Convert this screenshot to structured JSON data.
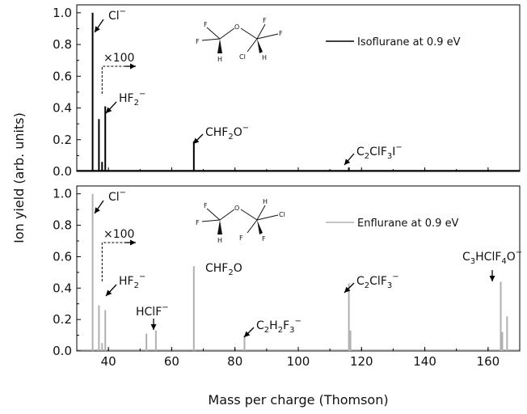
{
  "colors": {
    "isoflurane": "#000000",
    "enflurane": "#b0b0b0",
    "axis": "#000000"
  },
  "chart_data": [
    {
      "type": "line",
      "panel": "top",
      "legend": {
        "label": "Isoflurane at 0.9 eV",
        "placement": "top-right"
      },
      "xlim": [
        30,
        170
      ],
      "ylim": [
        0,
        1.05
      ],
      "ylabel": "Ion yield (arb. units)",
      "xlabel": "Mass per charge (Thomson)",
      "x_ticks": [
        "40",
        "60",
        "80",
        "100",
        "120",
        "140",
        "160"
      ],
      "y_ticks": [
        "0.0",
        "0.2",
        "0.4",
        "0.6",
        "0.8",
        "1.0"
      ],
      "peaks": [
        {
          "x": 35,
          "y": 1.0
        },
        {
          "x": 37,
          "y": 0.33
        },
        {
          "x": 38,
          "y": 0.06
        },
        {
          "x": 39,
          "y": 0.41
        },
        {
          "x": 67,
          "y": 0.19
        },
        {
          "x": 116,
          "y": 0.025
        }
      ],
      "annotations": [
        {
          "key": "cl",
          "main": "Cl",
          "sup": "−"
        },
        {
          "key": "hf2",
          "main": "HF",
          "sub": "2",
          "sup": "−"
        },
        {
          "key": "chf2o",
          "main": "CHF",
          "sub": "2",
          "main2": "O",
          "sup": "−"
        },
        {
          "key": "c2clf3i",
          "main": "C",
          "sub": "2",
          "main2": "ClF",
          "sub2": "3",
          "main3": "I",
          "sup": "−"
        },
        {
          "key": "x100",
          "text": "×100"
        }
      ],
      "molecule_atoms": [
        "F",
        "F",
        "H",
        "O",
        "F",
        "F",
        "Cl",
        "H"
      ]
    },
    {
      "type": "line",
      "panel": "bottom",
      "legend": {
        "label": "Enflurane at 0.9 eV",
        "placement": "top-right"
      },
      "xlim": [
        30,
        170
      ],
      "ylim": [
        0,
        1.05
      ],
      "ylabel": "Ion yield (arb. units)",
      "xlabel": "Mass per charge (Thomson)",
      "x_ticks": [
        "40",
        "60",
        "80",
        "100",
        "120",
        "140",
        "160"
      ],
      "y_ticks": [
        "0.0",
        "0.2",
        "0.4",
        "0.6",
        "0.8",
        "1.0"
      ],
      "peaks": [
        {
          "x": 35,
          "y": 1.0
        },
        {
          "x": 37,
          "y": 0.29
        },
        {
          "x": 38,
          "y": 0.05
        },
        {
          "x": 39,
          "y": 0.26
        },
        {
          "x": 52,
          "y": 0.11
        },
        {
          "x": 55,
          "y": 0.13
        },
        {
          "x": 67,
          "y": 0.54
        },
        {
          "x": 83,
          "y": 0.1
        },
        {
          "x": 116,
          "y": 0.43
        },
        {
          "x": 116.5,
          "y": 0.13
        },
        {
          "x": 164,
          "y": 0.44
        },
        {
          "x": 164.5,
          "y": 0.12
        },
        {
          "x": 166,
          "y": 0.22
        }
      ],
      "annotations": [
        {
          "key": "cl",
          "main": "Cl",
          "sup": "−"
        },
        {
          "key": "hf2",
          "main": "HF",
          "sub": "2",
          "sup": "−"
        },
        {
          "key": "hclf",
          "main": "HClF",
          "sup": "−"
        },
        {
          "key": "chf2o",
          "main": "CHF",
          "sub": "2",
          "main2": "O"
        },
        {
          "key": "c2h2f3",
          "main": "C",
          "sub": "2",
          "main2": "H",
          "sub2": "2",
          "main3": "F",
          "sub3": "3",
          "sup": "−"
        },
        {
          "key": "c2clf3",
          "main": "C",
          "sub": "2",
          "main2": "ClF",
          "sub2": "3",
          "sup": "−"
        },
        {
          "key": "c3hclf4o",
          "main": "C",
          "sub": "3",
          "main2": "HClF",
          "sub2": "4",
          "main3": "O",
          "sup": "−"
        },
        {
          "key": "x100",
          "text": "×100"
        }
      ],
      "molecule_atoms": [
        "F",
        "F",
        "H",
        "O",
        "H",
        "Cl",
        "F",
        "F"
      ]
    }
  ]
}
